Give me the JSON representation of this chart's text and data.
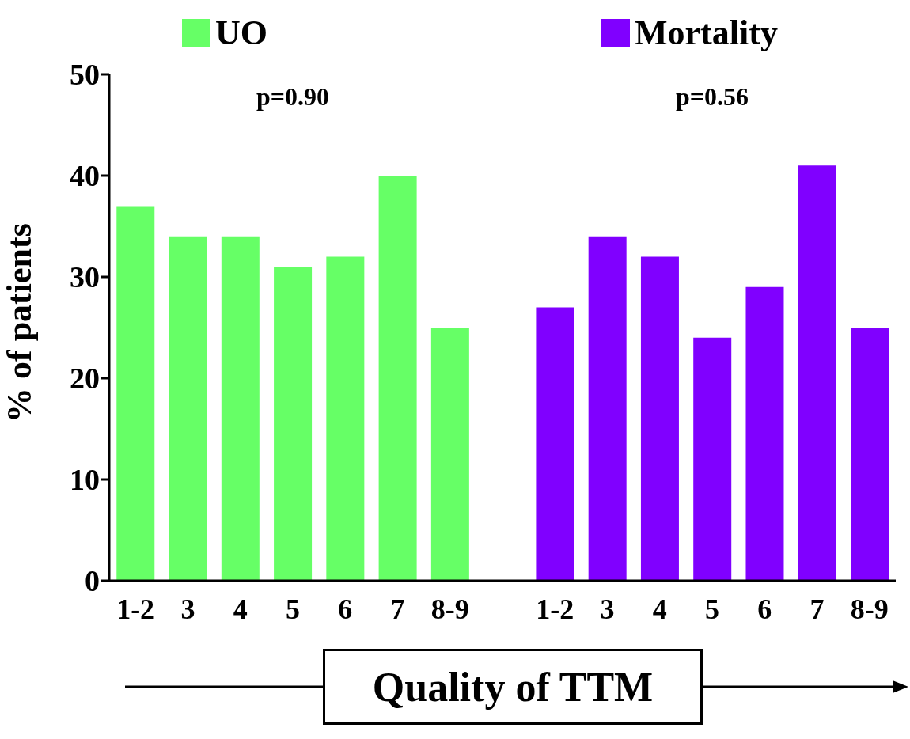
{
  "chart_data": {
    "type": "bar",
    "categories": [
      "1-2",
      "3",
      "4",
      "5",
      "6",
      "7",
      "8-9",
      null,
      "1-2",
      "3",
      "4",
      "5",
      "6",
      "7",
      "8-9"
    ],
    "series": [
      {
        "name": "UO",
        "color": "#66ff66",
        "values": [
          37,
          34,
          34,
          31,
          32,
          40,
          25,
          null,
          null,
          null,
          null,
          null,
          null,
          null,
          null
        ]
      },
      {
        "name": "Mortality",
        "color": "#8000ff",
        "values": [
          null,
          null,
          null,
          null,
          null,
          null,
          null,
          null,
          27,
          34,
          32,
          24,
          29,
          41,
          25
        ]
      }
    ],
    "ylabel": "% of patients",
    "xlabel": "Quality of TTM",
    "ylim": [
      0,
      50
    ],
    "yticks": [
      0,
      10,
      20,
      30,
      40,
      50
    ],
    "annotations": [
      "p=0.90",
      "p=0.56"
    ],
    "grid": false,
    "legend": "top"
  }
}
